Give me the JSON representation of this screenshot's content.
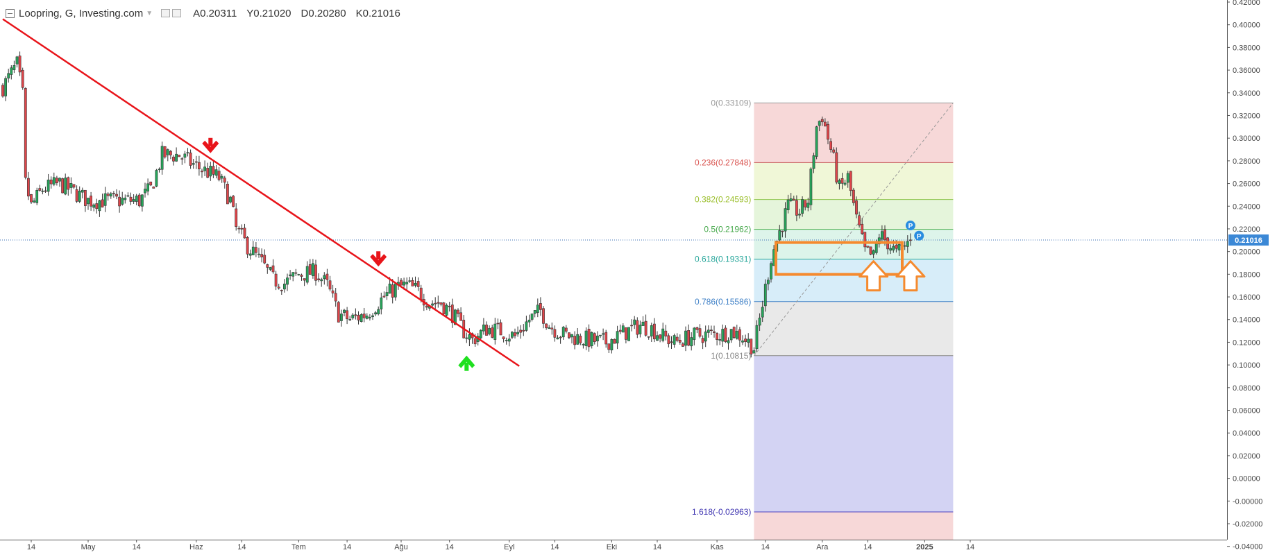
{
  "header": {
    "title": "Loopring, G, Investing.com",
    "ohlc": [
      "A0.20311",
      "Y0.21020",
      "D0.20280",
      "K0.21016"
    ]
  },
  "colors": {
    "up": "#26a65b",
    "down": "#e0454a",
    "trendline": "#e8141a",
    "arrow_down": "#e8141a",
    "arrow_up": "#1fe01f",
    "orange": "#f58a2e",
    "price_label_bg": "#3b88d6",
    "p_badge": "#2a8de0"
  },
  "price_label": "0.21016",
  "chart_data": {
    "type": "candlestick",
    "title": "",
    "y_axis": {
      "min": -0.04,
      "max": 0.42,
      "ticks": [
        "0.42000",
        "0.40000",
        "0.38000",
        "0.36000",
        "0.34000",
        "0.32000",
        "0.30000",
        "0.28000",
        "0.26000",
        "0.24000",
        "0.22000",
        "0.20000",
        "0.18000",
        "0.16000",
        "0.14000",
        "0.12000",
        "0.10000",
        "0.08000",
        "0.06000",
        "0.04000",
        "0.02000",
        "0.00000",
        "-0.00000",
        "-0.02000",
        "-0.04000"
      ]
    },
    "x_axis": {
      "ticks": [
        "14",
        "May",
        "14",
        "Haz",
        "14",
        "Tem",
        "14",
        "Ağu",
        "14",
        "Eyl",
        "14",
        "Eki",
        "14",
        "Kas",
        "14",
        "Ara",
        "14",
        "2025",
        "14"
      ]
    },
    "candle_count": 290,
    "path_points": [
      [
        0,
        0.345
      ],
      [
        5,
        0.365
      ],
      [
        7,
        0.338
      ],
      [
        8,
        0.26
      ],
      [
        10,
        0.24
      ],
      [
        14,
        0.255
      ],
      [
        20,
        0.26
      ],
      [
        30,
        0.245
      ],
      [
        40,
        0.245
      ],
      [
        48,
        0.245
      ],
      [
        52,
        0.255
      ],
      [
        56,
        0.285
      ],
      [
        62,
        0.285
      ],
      [
        68,
        0.275
      ],
      [
        72,
        0.27
      ],
      [
        76,
        0.265
      ],
      [
        80,
        0.245
      ],
      [
        82,
        0.22
      ],
      [
        86,
        0.205
      ],
      [
        91,
        0.19
      ],
      [
        95,
        0.175
      ],
      [
        99,
        0.172
      ],
      [
        104,
        0.18
      ],
      [
        110,
        0.182
      ],
      [
        114,
        0.17
      ],
      [
        118,
        0.145
      ],
      [
        122,
        0.14
      ],
      [
        128,
        0.145
      ],
      [
        134,
        0.16
      ],
      [
        138,
        0.168
      ],
      [
        142,
        0.17
      ],
      [
        146,
        0.165
      ],
      [
        150,
        0.155
      ],
      [
        154,
        0.155
      ],
      [
        158,
        0.145
      ],
      [
        162,
        0.13
      ],
      [
        165,
        0.122
      ],
      [
        170,
        0.132
      ],
      [
        175,
        0.13
      ],
      [
        180,
        0.125
      ],
      [
        185,
        0.14
      ],
      [
        189,
        0.148
      ],
      [
        192,
        0.135
      ],
      [
        196,
        0.128
      ],
      [
        200,
        0.125
      ],
      [
        206,
        0.122
      ],
      [
        212,
        0.12
      ],
      [
        218,
        0.128
      ],
      [
        224,
        0.135
      ],
      [
        228,
        0.132
      ],
      [
        232,
        0.125
      ],
      [
        236,
        0.12
      ],
      [
        242,
        0.125
      ],
      [
        248,
        0.127
      ],
      [
        252,
        0.127
      ],
      [
        256,
        0.13
      ],
      [
        260,
        0.125
      ],
      [
        262,
        0.12
      ],
      [
        264,
        0.115
      ],
      [
        266,
        0.14
      ],
      [
        270,
        0.195
      ],
      [
        276,
        0.24
      ],
      [
        280,
        0.235
      ],
      [
        283,
        0.245
      ],
      [
        286,
        0.31
      ],
      [
        288,
        0.32
      ],
      [
        292,
        0.28
      ],
      [
        294,
        0.255
      ],
      [
        297,
        0.265
      ],
      [
        300,
        0.228
      ],
      [
        303,
        0.2
      ],
      [
        306,
        0.195
      ],
      [
        308,
        0.215
      ],
      [
        311,
        0.208
      ],
      [
        314,
        0.198
      ],
      [
        317,
        0.205
      ],
      [
        319,
        0.21
      ]
    ],
    "trendline": {
      "from": [
        0,
        0.405
      ],
      "to": [
        162,
        0.117
      ]
    },
    "fibonacci": {
      "from_candle": 264,
      "to_candle": 334,
      "levels": [
        {
          "ratio": 0,
          "price": 0.33109,
          "label": "0(0.33109)",
          "line": "#999999",
          "text": "#999999",
          "fill": "rgba(225,100,100,0.25)"
        },
        {
          "ratio": 0.236,
          "price": 0.27848,
          "label": "0.236(0.27848)",
          "line": "#c75a5a",
          "text": "#d9534f",
          "fill": "rgba(200,225,110,0.28)"
        },
        {
          "ratio": 0.382,
          "price": 0.24593,
          "label": "0.382(0.24593)",
          "line": "#8bc34a",
          "text": "#9bbf2c",
          "fill": "rgba(150,215,110,0.25)"
        },
        {
          "ratio": 0.5,
          "price": 0.21962,
          "label": "0.5(0.21962)",
          "line": "#4caf50",
          "text": "#45a84a",
          "fill": "rgba(120,210,170,0.25)"
        },
        {
          "ratio": 0.618,
          "price": 0.19331,
          "label": "0.618(0.19331)",
          "line": "#26a69a",
          "text": "#26a69a",
          "fill": "rgba(110,190,235,0.28)"
        },
        {
          "ratio": 0.786,
          "price": 0.15586,
          "label": "0.786(0.15586)",
          "line": "#3d7fc6",
          "text": "#3d7fc6",
          "fill": "rgba(175,175,175,0.28)"
        },
        {
          "ratio": 1,
          "price": 0.10815,
          "label": "1(0.10815)",
          "line": "#888888",
          "text": "#888888",
          "fill": "rgba(130,130,220,0.35)"
        },
        {
          "ratio": 1.618,
          "price": -0.02963,
          "label": "1.618(-0.02963)",
          "line": "#4b3fbf",
          "text": "#3d33b0",
          "fill": "rgba(225,100,100,0.25)"
        }
      ]
    },
    "annotations": {
      "current_price": 0.21016,
      "down_arrows": [
        [
          73,
          0.288
        ],
        [
          132,
          0.188
        ]
      ],
      "up_arrow": [
        163,
        0.107
      ],
      "fib_618_box_anchor": [
        236,
        0.19331
      ],
      "hollow_up_arrows": [
        [
          306,
          0.178
        ],
        [
          319,
          0.178
        ]
      ],
      "p_badges": [
        [
          319,
          0.223
        ],
        [
          322,
          0.214
        ]
      ]
    }
  }
}
